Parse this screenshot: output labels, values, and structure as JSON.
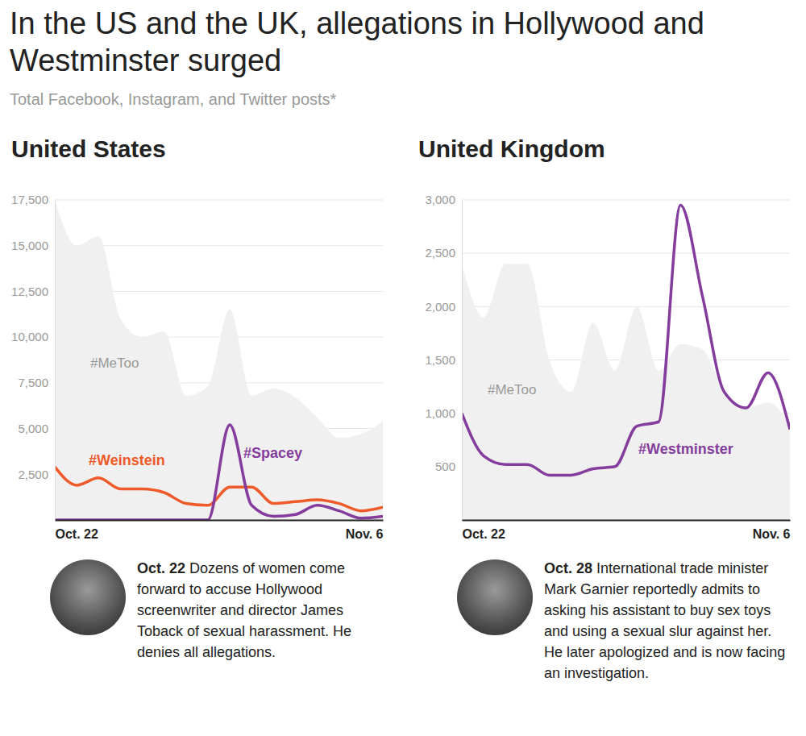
{
  "header": {
    "title": "In the US and the UK, allegations in Hollywood and Westminster surged",
    "subtitle": "Total Facebook, Instagram, and Twitter posts*"
  },
  "chart_data": [
    {
      "type": "line",
      "title": "United States",
      "categories": [
        "Oct. 22",
        null,
        null,
        null,
        null,
        null,
        null,
        null,
        null,
        null,
        null,
        null,
        null,
        null,
        null,
        "Nov. 6"
      ],
      "ylim": [
        0,
        17500
      ],
      "yticks": [
        {
          "value": 2500,
          "label": "2,500"
        },
        {
          "value": 5000,
          "label": "5,000"
        },
        {
          "value": 7500,
          "label": "7,500"
        },
        {
          "value": 10000,
          "label": "10,000"
        },
        {
          "value": 12500,
          "label": "12,500"
        },
        {
          "value": 15000,
          "label": "15,000"
        },
        {
          "value": 17500,
          "label": "17,500"
        }
      ],
      "grid": true,
      "series": [
        {
          "name": "#MeToo",
          "type": "area",
          "color": "#f0f0f0",
          "values": [
            17500,
            15000,
            15500,
            11000,
            10000,
            10300,
            6800,
            7300,
            11500,
            6800,
            7200,
            6700,
            5600,
            4500,
            4700,
            5400
          ]
        },
        {
          "name": "#Weinstein",
          "type": "line",
          "color": "#ef5a2a",
          "values": [
            2900,
            1900,
            2300,
            1700,
            1700,
            1500,
            900,
            800,
            1800,
            1800,
            900,
            1000,
            1100,
            900,
            500,
            700
          ]
        },
        {
          "name": "#Spacey",
          "type": "line",
          "color": "#843d9c",
          "values": [
            0,
            0,
            0,
            0,
            0,
            0,
            0,
            0,
            5200,
            800,
            200,
            300,
            800,
            500,
            100,
            200
          ]
        }
      ],
      "annotations": [
        {
          "date": "Oct. 22",
          "text": "Dozens of women come forward to accuse Hollywood screenwriter and director James Toback of sexual harassment. He denies all allegations."
        }
      ]
    },
    {
      "type": "line",
      "title": "United Kingdom",
      "categories": [
        "Oct. 22",
        null,
        null,
        null,
        null,
        null,
        null,
        null,
        null,
        null,
        null,
        null,
        null,
        null,
        null,
        "Nov. 6"
      ],
      "ylim": [
        0,
        3000
      ],
      "yticks": [
        500,
        {
          "value": 1000,
          "label": "1,000"
        },
        {
          "value": 1500,
          "label": "1,500"
        },
        {
          "value": 2000,
          "label": "2,000"
        },
        {
          "value": 2500,
          "label": "2,500"
        },
        {
          "value": 3000,
          "label": "3,000"
        }
      ],
      "grid": true,
      "series": [
        {
          "name": "#MeToo",
          "type": "area",
          "color": "#f0f0f0",
          "values": [
            2400,
            1900,
            2400,
            2400,
            1500,
            1200,
            1850,
            1400,
            2000,
            1400,
            1650,
            1600,
            1200,
            1050,
            1100,
            900
          ]
        },
        {
          "name": "#Westminster",
          "type": "line",
          "color": "#843d9c",
          "values": [
            1000,
            600,
            520,
            520,
            420,
            420,
            480,
            500,
            880,
            920,
            2950,
            2100,
            1200,
            1050,
            1380,
            850
          ]
        }
      ],
      "annotations": [
        {
          "date": "Oct. 28",
          "text": "International trade minister Mark Garnier reportedly admits to asking his assistant to buy sex toys and using a sexual slur against her. He later apologized and is now facing an investigation."
        }
      ]
    }
  ]
}
